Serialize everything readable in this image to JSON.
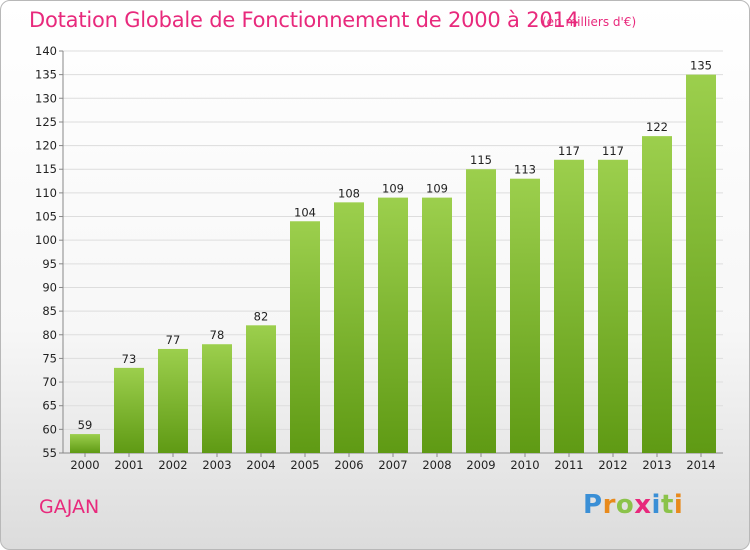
{
  "header": {
    "title": "Dotation Globale de Fonctionnement de 2000 à 2014",
    "unit": "(en milliers d'€)"
  },
  "footer": {
    "town": "GAJAN",
    "logo": [
      "P",
      "r",
      "o",
      "x",
      "i",
      "t",
      "i"
    ],
    "logo_colors": [
      "#3a8fd6",
      "#e88a1c",
      "#8bc34a",
      "#e8297c",
      "#3a8fd6",
      "#8bc34a",
      "#e88a1c"
    ]
  },
  "colors": {
    "accent": "#e8297c",
    "bar_top": "#9ccf4d",
    "bar_bottom": "#5f9a14"
  },
  "chart_data": {
    "type": "bar",
    "title": "Dotation Globale de Fonctionnement de 2000 à 2014",
    "subtitle": "(en milliers d'€)",
    "xlabel": "",
    "ylabel": "",
    "categories": [
      "2000",
      "2001",
      "2002",
      "2003",
      "2004",
      "2005",
      "2006",
      "2007",
      "2008",
      "2009",
      "2010",
      "2011",
      "2012",
      "2013",
      "2014"
    ],
    "values": [
      59,
      73,
      77,
      78,
      82,
      104,
      108,
      109,
      109,
      115,
      113,
      117,
      117,
      122,
      135
    ],
    "ylim": [
      55,
      140
    ],
    "yticks": [
      55,
      60,
      65,
      70,
      75,
      80,
      85,
      90,
      95,
      100,
      105,
      110,
      115,
      120,
      125,
      130,
      135,
      140
    ],
    "grid": true
  }
}
